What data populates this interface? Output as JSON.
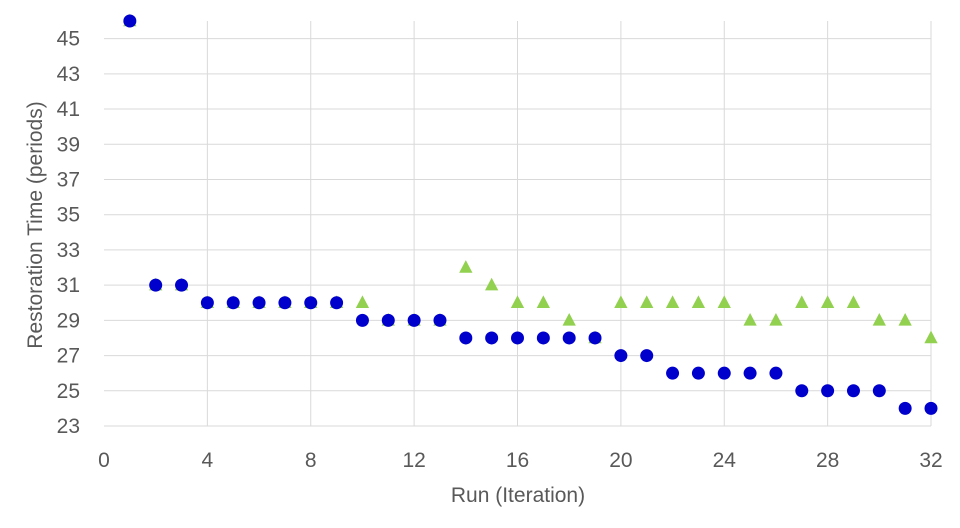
{
  "chart_data": {
    "type": "scatter",
    "xlabel": "Run (Iteration)",
    "ylabel": "Restoration Time (periods)",
    "xlim": [
      0,
      32
    ],
    "ylim": [
      23,
      46
    ],
    "xticks": [
      0,
      4,
      8,
      12,
      16,
      20,
      24,
      28,
      32
    ],
    "yticks": [
      23,
      25,
      27,
      29,
      31,
      33,
      35,
      37,
      39,
      41,
      43,
      45
    ],
    "grid": true,
    "x": [
      1,
      2,
      3,
      4,
      5,
      6,
      7,
      8,
      9,
      10,
      11,
      12,
      13,
      14,
      15,
      16,
      17,
      18,
      19,
      20,
      21,
      22,
      23,
      24,
      25,
      26,
      27,
      28,
      29,
      30,
      31,
      32
    ],
    "series": [
      {
        "marker": "triangle",
        "color": "#92d050",
        "values": [
          46,
          31,
          31,
          30,
          30,
          30,
          30,
          30,
          30,
          30,
          29,
          29,
          29,
          32,
          31,
          30,
          30,
          29,
          28,
          30,
          30,
          30,
          30,
          30,
          29,
          29,
          30,
          30,
          30,
          29,
          29,
          28
        ]
      },
      {
        "marker": "circle",
        "color": "#0000cc",
        "values": [
          46,
          31,
          31,
          30,
          30,
          30,
          30,
          30,
          30,
          29,
          29,
          29,
          29,
          28,
          28,
          28,
          28,
          28,
          28,
          27,
          27,
          26,
          26,
          26,
          26,
          26,
          25,
          25,
          25,
          25,
          24,
          24
        ]
      }
    ]
  }
}
